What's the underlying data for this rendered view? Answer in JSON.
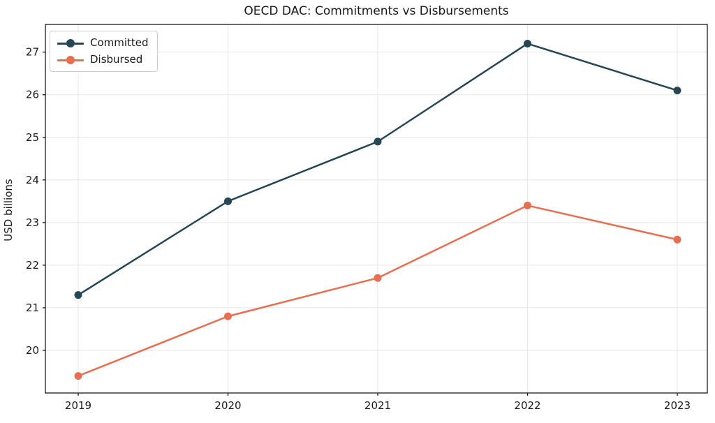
{
  "colors": {
    "background": "#ffffff",
    "grid": "#e6e6e6",
    "spine": "#1a1a1a",
    "tick_text": "#1a1a1a",
    "committed": "#264653",
    "disbursed": "#e76f51"
  },
  "chart_data": {
    "type": "line",
    "title": "OECD DAC: Commitments vs Disbursements",
    "xlabel": "",
    "ylabel": "USD billions",
    "categories": [
      "2019",
      "2020",
      "2021",
      "2022",
      "2023"
    ],
    "series": [
      {
        "name": "Committed",
        "color": "#264653",
        "values": [
          21.3,
          23.5,
          24.9,
          27.2,
          26.1
        ]
      },
      {
        "name": "Disbursed",
        "color": "#e76f51",
        "values": [
          19.4,
          20.8,
          21.7,
          23.4,
          22.6
        ]
      }
    ],
    "yticks": [
      20,
      21,
      22,
      23,
      24,
      25,
      26,
      27
    ],
    "ylim": [
      19.0,
      27.65
    ],
    "grid": true,
    "legend_position": "upper left",
    "marker": "circle",
    "line_width": 2.5,
    "marker_radius": 5.5
  }
}
